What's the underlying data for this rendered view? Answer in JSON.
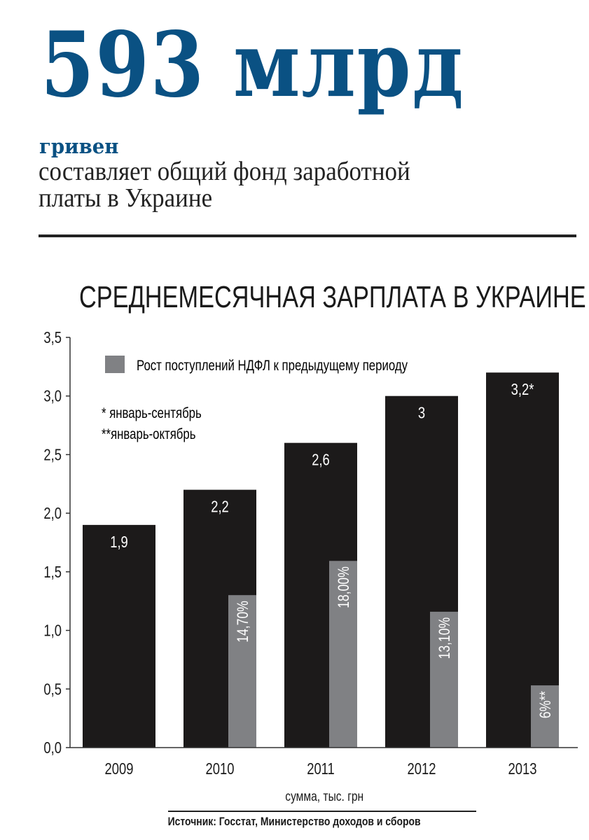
{
  "header": {
    "big_number": "593 млрд",
    "unit": "гривен",
    "subtitle_line1": "составляет общий фонд заработной",
    "subtitle_line2": "платы в Украине"
  },
  "colors": {
    "accent": "#0a5183",
    "bar_main": "#1c1a1a",
    "bar_overlay": "#808184"
  },
  "chart_data": {
    "type": "bar",
    "title": "СРЕДНЕМЕСЯЧНАЯ ЗАРПЛАТА В УКРАИНЕ",
    "xlabel": "сумма, тыс. грн",
    "ylabel": "",
    "ylim": [
      0,
      3.5
    ],
    "yticks": [
      "0,0",
      "0,5",
      "1,0",
      "1,5",
      "2,0",
      "2,5",
      "3,0",
      "3,5"
    ],
    "categories": [
      "2009",
      "2010",
      "2011",
      "2012",
      "2013"
    ],
    "series": [
      {
        "name": "Среднемесячная зарплата, тыс. грн",
        "values": [
          1.9,
          2.2,
          2.6,
          3.0,
          3.2
        ],
        "labels": [
          "1,9",
          "2,2",
          "2,6",
          "3",
          "3,2*"
        ]
      },
      {
        "name": "Рост поступлений НДФЛ к предыдущему периоду",
        "values_percent": [
          null,
          14.7,
          18.0,
          13.1,
          6
        ],
        "labels": [
          "",
          "14,70%",
          "18,00%",
          "13,10%",
          "6%**"
        ],
        "plot_scale_per_percent": 0.0885
      }
    ],
    "legend": {
      "label": "Рост поступлений НДФЛ к предыдущему периоду",
      "placement": "top"
    },
    "notes": [
      "* январь-сентябрь",
      "**январь-октябрь"
    ],
    "grid": false
  },
  "source": "Источник: Госстат, Министерство доходов и сборов"
}
